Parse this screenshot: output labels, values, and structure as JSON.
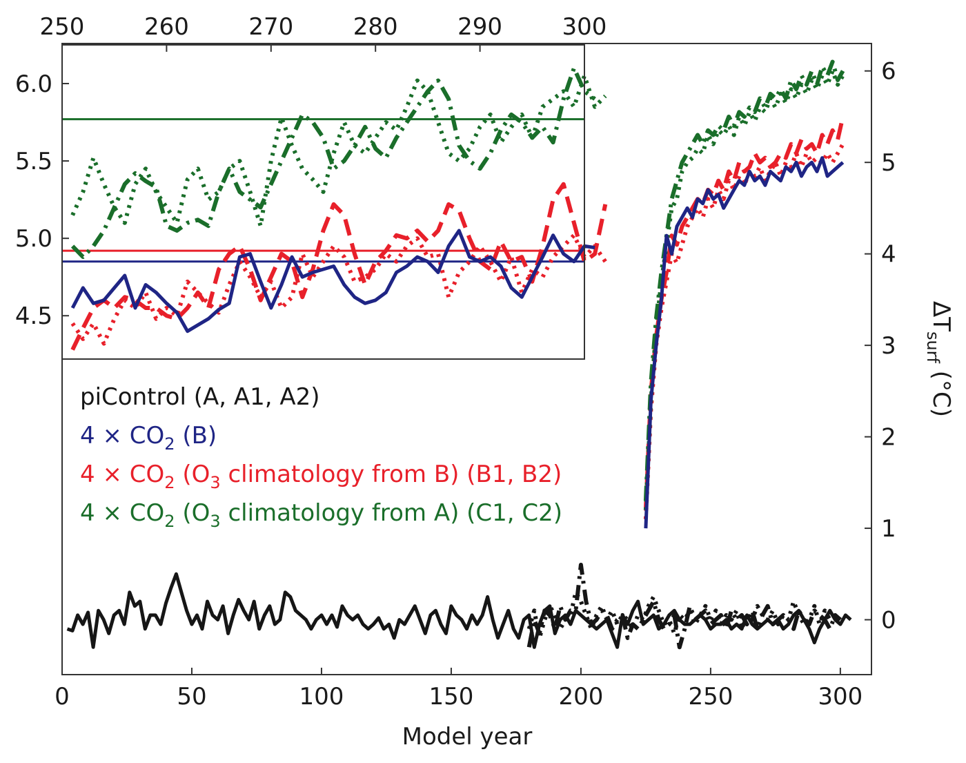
{
  "chart_data": [
    {
      "type": "line",
      "xlabel": "Model year",
      "ylabel": "ΔT",
      "ylabel_sub": "surf",
      "ylabel_unit": " (°C)",
      "xlim": [
        0,
        312
      ],
      "ylim": [
        -0.6,
        6.3
      ],
      "xticks": [
        "0",
        "50",
        "100",
        "150",
        "200",
        "250",
        "300"
      ],
      "yticks": [
        "0",
        "1",
        "2",
        "3",
        "4",
        "5",
        "6"
      ],
      "colors": {
        "black": "#161616",
        "blue": "#1f2585",
        "red": "#e8202a",
        "green": "#1a6e2a"
      },
      "legend": [
        {
          "prefix": "piControl (A, A1, A2)",
          "color": "#161616"
        },
        {
          "prefix": "4 × CO",
          "sub": "2",
          "suffix": " (B)",
          "color": "#1f2585"
        },
        {
          "prefix": "4 × CO",
          "sub": "2",
          "mid": " (O",
          "sub2": "3",
          "suffix": " climatology from B) (B1, B2)",
          "color": "#e8202a"
        },
        {
          "prefix": "4 × CO",
          "sub": "2",
          "mid": " (O",
          "sub2": "3",
          "suffix": " climatology from A) (C1, C2)",
          "color": "#1a6e2a"
        }
      ],
      "series": [
        {
          "id": "A",
          "style": "solid",
          "color": "#161616",
          "x_start": 2,
          "x_step": 2,
          "values": [
            -0.1,
            -0.12,
            0.05,
            -0.05,
            0.08,
            -0.3,
            0.1,
            0.0,
            -0.15,
            0.05,
            0.1,
            -0.05,
            0.3,
            0.15,
            0.2,
            -0.1,
            0.05,
            0.05,
            -0.05,
            0.18,
            0.35,
            0.5,
            0.3,
            0.1,
            -0.05,
            0.05,
            -0.1,
            0.2,
            0.05,
            0.0,
            0.15,
            -0.15,
            0.05,
            0.22,
            0.1,
            0.0,
            0.2,
            -0.1,
            0.05,
            0.15,
            -0.05,
            0.0,
            0.3,
            0.25,
            0.1,
            0.05,
            0.0,
            -0.1,
            0.0,
            0.05,
            -0.05,
            0.05,
            -0.08,
            0.15,
            0.05,
            0.0,
            0.05,
            -0.05,
            -0.1,
            -0.05,
            0.02,
            -0.1,
            -0.05,
            -0.2,
            0.0,
            -0.05,
            0.05,
            0.15,
            0.0,
            -0.15,
            0.05,
            0.1,
            -0.05,
            -0.15,
            0.15,
            0.05,
            0.0,
            -0.1,
            0.05,
            -0.05,
            0.05,
            0.25,
            0.0,
            -0.2,
            -0.05,
            0.1,
            -0.1,
            -0.2,
            0.0,
            0.05,
            -0.3,
            -0.05,
            0.1,
            0.15,
            -0.15,
            0.0,
            0.05,
            -0.05,
            0.1,
            0.05,
            0.0,
            -0.05,
            -0.1,
            -0.05,
            0.0,
            -0.15,
            -0.3,
            0.05,
            -0.05,
            0.1,
            0.2,
            -0.05,
            0.0,
            0.05,
            -0.1,
            -0.05,
            0.05,
            0.1,
            0.0,
            -0.05,
            -0.05,
            0.0,
            0.05,
            0.0,
            -0.1,
            -0.05,
            -0.05,
            0.0,
            -0.1,
            -0.05,
            -0.1,
            0.05,
            -0.05,
            -0.1,
            -0.05,
            0.0,
            -0.05,
            0.0,
            -0.1,
            -0.05,
            0.05,
            0.1,
            0.0,
            -0.1,
            -0.25,
            -0.1,
            0.0,
            0.1,
            0.0,
            -0.05,
            0.05,
            0.0
          ]
        },
        {
          "id": "A1",
          "style": "dashdot",
          "color": "#161616",
          "x_start": 180,
          "x_step": 2,
          "values": [
            -0.3,
            0.0,
            -0.15,
            0.1,
            0.05,
            -0.1,
            0.15,
            0.0,
            0.1,
            0.1,
            0.6,
            0.2,
            -0.05,
            0.0,
            0.1,
            0.05,
            -0.1,
            0.0,
            0.05,
            -0.2,
            -0.05,
            -0.1,
            0.0,
            0.1,
            0.2,
            0.0,
            -0.1,
            -0.05,
            0.05,
            -0.3,
            -0.1,
            0.15,
            0.0,
            0.05,
            0.1,
            -0.05,
            0.0,
            0.05,
            -0.1,
            0.1,
            0.0,
            0.05,
            -0.05,
            0.1,
            -0.1,
            0.05,
            0.15,
            -0.05,
            0.0,
            0.05,
            0.0,
            -0.1,
            0.1,
            0.0,
            -0.05,
            0.1,
            0.05,
            0.0,
            -0.1,
            0.05,
            0.0
          ]
        },
        {
          "id": "A2",
          "style": "dotted",
          "color": "#161616",
          "x_start": 180,
          "x_step": 2,
          "values": [
            -0.1,
            0.1,
            -0.2,
            0.0,
            0.15,
            0.05,
            -0.1,
            0.0,
            0.05,
            0.3,
            0.2,
            0.05,
            -0.1,
            0.05,
            0.15,
            0.0,
            0.1,
            -0.05,
            0.05,
            0.0,
            -0.1,
            0.05,
            0.0,
            0.15,
            0.25,
            0.1,
            -0.05,
            0.0,
            -0.15,
            0.05,
            0.0,
            0.1,
            -0.05,
            0.05,
            0.15,
            0.0,
            0.1,
            -0.05,
            0.05,
            0.0,
            0.1,
            -0.1,
            0.05,
            0.0,
            0.15,
            0.05,
            0.0,
            0.1,
            -0.05,
            0.05,
            0.0,
            0.2,
            0.05,
            -0.05,
            0.0,
            0.15,
            -0.05,
            0.1,
            0.0,
            0.05,
            0.0
          ]
        },
        {
          "id": "B1",
          "style": "dashed",
          "color": "#e8202a",
          "x_start": 225,
          "x_step": 2,
          "values": [
            1.2,
            2.5,
            3.1,
            3.5,
            3.8,
            4.2,
            4.1,
            4.3,
            4.4,
            4.5,
            4.6,
            4.55,
            4.7,
            4.65,
            4.8,
            4.7,
            4.9,
            4.8,
            5.0,
            4.9,
            4.95,
            5.1,
            5.0,
            5.05,
            4.95,
            5.0,
            5.1,
            5.05,
            5.2,
            5.1,
            5.25,
            5.15,
            5.2,
            5.1,
            5.3,
            5.2,
            5.35,
            5.25,
            5.5
          ]
        },
        {
          "id": "B2",
          "style": "dotted",
          "color": "#e8202a",
          "x_start": 225,
          "x_step": 2,
          "values": [
            1.1,
            2.3,
            3.0,
            3.4,
            3.7,
            4.0,
            3.9,
            4.1,
            4.3,
            4.4,
            4.5,
            4.4,
            4.6,
            4.5,
            4.7,
            4.6,
            4.8,
            4.7,
            4.85,
            4.75,
            4.9,
            4.85,
            4.95,
            4.8,
            4.9,
            5.0,
            4.85,
            5.0,
            4.95,
            5.1,
            4.95,
            5.1,
            5.0,
            5.05,
            5.0,
            5.1,
            5.0,
            5.1,
            5.2
          ]
        },
        {
          "id": "C1",
          "style": "dashdot",
          "color": "#1a6e2a",
          "x_start": 225,
          "x_step": 2,
          "values": [
            1.3,
            2.6,
            3.3,
            3.8,
            4.2,
            4.6,
            4.8,
            5.0,
            5.1,
            5.2,
            5.3,
            5.2,
            5.35,
            5.3,
            5.4,
            5.35,
            5.5,
            5.4,
            5.55,
            5.5,
            5.6,
            5.55,
            5.7,
            5.6,
            5.75,
            5.7,
            5.8,
            5.7,
            5.9,
            5.8,
            5.95,
            5.85,
            6.0,
            5.85,
            6.05,
            5.95,
            6.1,
            5.9,
            6.0
          ]
        },
        {
          "id": "C2",
          "style": "dotted",
          "color": "#1a6e2a",
          "x_start": 225,
          "x_step": 2,
          "values": [
            1.2,
            2.4,
            3.2,
            3.7,
            4.1,
            4.5,
            4.6,
            4.9,
            5.0,
            5.05,
            5.15,
            5.1,
            5.3,
            5.2,
            5.35,
            5.3,
            5.4,
            5.3,
            5.5,
            5.4,
            5.55,
            5.45,
            5.6,
            5.55,
            5.7,
            5.6,
            5.75,
            5.65,
            5.8,
            5.7,
            5.85,
            5.75,
            5.9,
            5.8,
            5.95,
            5.85,
            6.0,
            5.85,
            5.95
          ]
        },
        {
          "id": "B",
          "style": "solid",
          "color": "#1f2585",
          "x_start": 225,
          "x_step": 2,
          "values": [
            1.0,
            2.4,
            3.0,
            3.5,
            4.2,
            4.0,
            4.3,
            4.4,
            4.5,
            4.4,
            4.6,
            4.55,
            4.7,
            4.6,
            4.65,
            4.5,
            4.6,
            4.7,
            4.8,
            4.75,
            4.9,
            4.8,
            4.85,
            4.75,
            4.9,
            4.85,
            4.8,
            4.95,
            4.9,
            5.0,
            4.85,
            4.95,
            5.0,
            4.9,
            5.05,
            4.85,
            4.9,
            4.95,
            5.0
          ]
        }
      ]
    },
    {
      "type": "line",
      "xlim": [
        250,
        300
      ],
      "ylim": [
        4.22,
        6.25
      ],
      "xticks": [
        "250",
        "260",
        "270",
        "280",
        "290",
        "300"
      ],
      "yticks": [
        "4.5",
        "5.0",
        "5.5",
        "6.0"
      ],
      "hlines": [
        {
          "y": 5.77,
          "color": "#1a6e2a"
        },
        {
          "y": 4.92,
          "color": "#e8202a"
        },
        {
          "y": 4.85,
          "color": "#1f2585"
        }
      ],
      "series": [
        {
          "id": "C1",
          "style": "dashdot",
          "color": "#1a6e2a",
          "x_start": 251,
          "x_step": 1,
          "values": [
            4.95,
            4.88,
            4.95,
            5.05,
            5.2,
            5.35,
            5.42,
            5.37,
            5.33,
            5.08,
            5.05,
            5.1,
            5.12,
            5.08,
            5.3,
            5.45,
            5.3,
            5.25,
            5.2,
            5.35,
            5.5,
            5.65,
            5.8,
            5.75,
            5.65,
            5.45,
            5.5,
            5.6,
            5.72,
            5.58,
            5.52,
            5.65,
            5.75,
            5.85,
            5.95,
            6.02,
            5.9,
            5.6,
            5.5,
            5.45,
            5.55,
            5.7,
            5.8,
            5.75,
            5.65,
            5.72,
            5.62,
            5.9,
            6.1,
            5.95,
            5.9
          ]
        },
        {
          "id": "C2",
          "style": "dotted",
          "color": "#1a6e2a",
          "x_start": 251,
          "x_step": 1,
          "values": [
            5.15,
            5.3,
            5.52,
            5.35,
            5.2,
            5.1,
            5.35,
            5.45,
            5.3,
            5.2,
            5.1,
            5.38,
            5.45,
            5.25,
            5.3,
            5.45,
            5.5,
            5.3,
            5.08,
            5.5,
            5.78,
            5.6,
            5.45,
            5.38,
            5.3,
            5.55,
            5.75,
            5.6,
            5.55,
            5.65,
            5.75,
            5.7,
            5.85,
            6.02,
            5.95,
            5.75,
            5.55,
            5.5,
            5.58,
            5.72,
            5.8,
            5.62,
            5.72,
            5.8,
            5.65,
            5.85,
            5.9,
            5.95,
            5.85,
            6.05,
            5.85,
            5.92
          ]
        },
        {
          "id": "B1",
          "style": "dashed",
          "color": "#e8202a",
          "x_start": 251,
          "x_step": 1,
          "values": [
            4.28,
            4.42,
            4.55,
            4.6,
            4.55,
            4.62,
            4.6,
            4.55,
            4.55,
            4.5,
            4.48,
            4.55,
            4.65,
            4.55,
            4.8,
            4.9,
            4.95,
            4.8,
            4.6,
            4.75,
            4.9,
            4.85,
            4.62,
            4.8,
            5.05,
            5.22,
            5.15,
            4.9,
            4.7,
            4.85,
            4.92,
            5.02,
            5.0,
            5.05,
            4.98,
            5.05,
            5.22,
            5.18,
            5.0,
            4.85,
            4.8,
            4.98,
            4.85,
            4.88,
            4.72,
            4.95,
            5.25,
            5.35,
            5.1,
            4.85,
            4.9,
            5.22
          ]
        },
        {
          "id": "B2",
          "style": "dotted",
          "color": "#e8202a",
          "x_start": 251,
          "x_step": 1,
          "values": [
            4.45,
            4.35,
            4.45,
            4.32,
            4.48,
            4.6,
            4.55,
            4.65,
            4.48,
            4.55,
            4.5,
            4.72,
            4.65,
            4.58,
            4.52,
            4.7,
            4.85,
            4.75,
            4.62,
            4.72,
            4.55,
            4.62,
            4.9,
            4.75,
            4.85,
            4.95,
            4.88,
            4.72,
            4.75,
            4.8,
            4.9,
            4.85,
            4.95,
            5.0,
            4.88,
            4.9,
            4.62,
            4.78,
            4.85,
            4.95,
            4.85,
            4.72,
            4.88,
            4.65,
            4.8,
            4.75,
            4.88,
            4.95,
            5.02,
            4.88,
            4.95,
            4.85
          ]
        },
        {
          "id": "B",
          "style": "solid",
          "color": "#1f2585",
          "x_start": 251,
          "x_step": 1,
          "values": [
            4.55,
            4.68,
            4.58,
            4.6,
            4.68,
            4.76,
            4.55,
            4.7,
            4.65,
            4.58,
            4.52,
            4.4,
            4.44,
            4.48,
            4.54,
            4.58,
            4.88,
            4.9,
            4.72,
            4.55,
            4.7,
            4.88,
            4.75,
            4.78,
            4.8,
            4.82,
            4.7,
            4.62,
            4.58,
            4.6,
            4.65,
            4.78,
            4.82,
            4.88,
            4.85,
            4.78,
            4.95,
            5.05,
            4.88,
            4.85,
            4.88,
            4.82,
            4.68,
            4.62,
            4.75,
            4.88,
            5.02,
            4.9,
            4.85,
            4.95,
            4.94
          ]
        }
      ]
    }
  ]
}
